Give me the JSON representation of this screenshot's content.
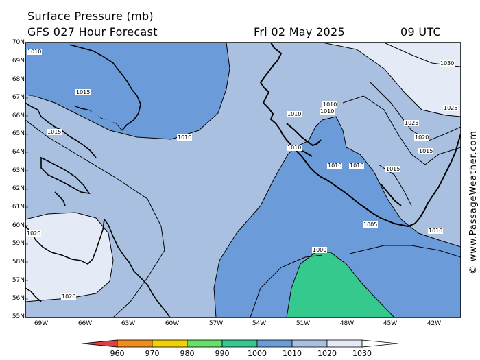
{
  "header": {
    "title": "Surface Pressure (mb)",
    "subtitle": "GFS 027 Hour Forecast",
    "date": "Fri 02 May 2025",
    "time": "09 UTC"
  },
  "map": {
    "lat_labels": [
      "70N",
      "69N",
      "68N",
      "67N",
      "66N",
      "65N",
      "64N",
      "63N",
      "62N",
      "61N",
      "60N",
      "59N",
      "58N",
      "57N",
      "56N",
      "55N"
    ],
    "lon_labels": [
      "69W",
      "66W",
      "63W",
      "60W",
      "57W",
      "54W",
      "51W",
      "48W",
      "45W",
      "42W"
    ],
    "isobar_labels": [
      {
        "name": "isobar-1010-a",
        "text": "1010"
      },
      {
        "name": "isobar-1015-a",
        "text": "1015"
      },
      {
        "name": "isobar-1015-b",
        "text": "1015"
      },
      {
        "name": "isobar-1010-b",
        "text": "1010"
      },
      {
        "name": "isobar-1020-a",
        "text": "1020"
      },
      {
        "name": "isobar-1020-b",
        "text": "1020"
      },
      {
        "name": "isobar-1010-c",
        "text": "1010"
      },
      {
        "name": "isobar-1010-d",
        "text": "1010"
      },
      {
        "name": "isobar-1010-e",
        "text": "1010"
      },
      {
        "name": "isobar-1010-f",
        "text": "1010"
      },
      {
        "name": "isobar-1010-g",
        "text": "1010"
      },
      {
        "name": "isobar-1010-h",
        "text": "1010"
      },
      {
        "name": "isobar-1005",
        "text": "1005"
      },
      {
        "name": "isobar-1000",
        "text": "1000"
      },
      {
        "name": "isobar-1010-i",
        "text": "1010"
      },
      {
        "name": "isobar-1015-c",
        "text": "1015"
      },
      {
        "name": "isobar-1015-d",
        "text": "1015"
      },
      {
        "name": "isobar-1020-c",
        "text": "1020"
      },
      {
        "name": "isobar-1025-a",
        "text": "1025"
      },
      {
        "name": "isobar-1025-b",
        "text": "1025"
      },
      {
        "name": "isobar-1030",
        "text": "1030"
      }
    ],
    "fill_colors": {
      "ocean_low": "#6b9bd8",
      "ocean_1010": "#a9c0e1",
      "ocean_1020": "#e4ebf7",
      "low_990": "#36c98e",
      "land": "#ffffff"
    }
  },
  "credit": "© www.PassageWeather.com",
  "legend": {
    "labels": [
      "960",
      "970",
      "980",
      "990",
      "1000",
      "1010",
      "1020",
      "1030"
    ],
    "colors": [
      "#e63c3c",
      "#f08c1a",
      "#f2d200",
      "#66e066",
      "#36c98e",
      "#6b9bd8",
      "#a9c0e1",
      "#e4ebf7"
    ]
  }
}
